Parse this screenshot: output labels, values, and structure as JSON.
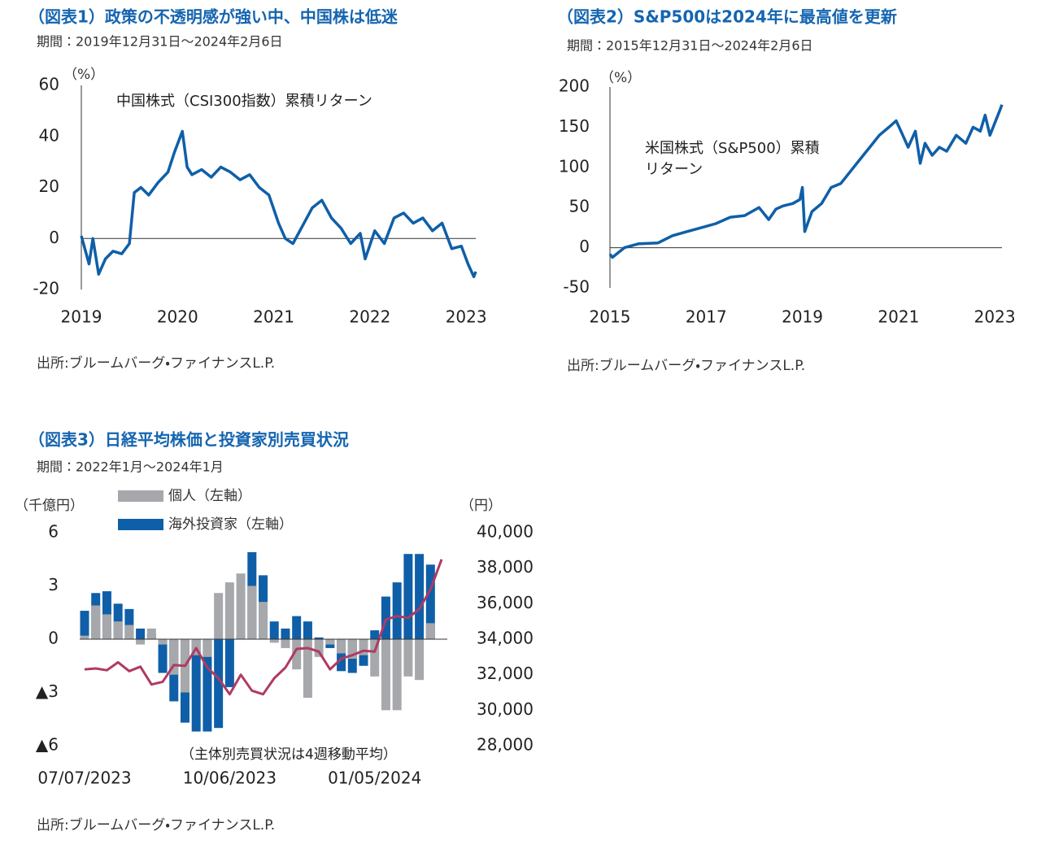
{
  "chart_data": [
    {
      "type": "line",
      "title": "（図表1）政策の不透明感が強い中、中国株は低迷",
      "subtitle": "期間：2019年12月31日～2024年2月6日",
      "y_unit": "（%）",
      "annotation": "中国株式（CSI300指数）累積リターン",
      "source": "出所:ブルームバーグ・ファイナンスL.P.",
      "xlim": [
        2019,
        2023.1
      ],
      "xticks": [
        2019,
        2020,
        2021,
        2022,
        2023
      ],
      "ylim": [
        -20,
        60
      ],
      "yticks": [
        -20,
        0,
        20,
        40,
        60
      ],
      "color": "#0f5fa8",
      "x": [
        2019.0,
        2019.08,
        2019.12,
        2019.18,
        2019.25,
        2019.33,
        2019.42,
        2019.5,
        2019.55,
        2019.62,
        2019.7,
        2019.8,
        2019.9,
        2019.97,
        2020.05,
        2020.1,
        2020.15,
        2020.25,
        2020.35,
        2020.45,
        2020.55,
        2020.65,
        2020.75,
        2020.85,
        2020.95,
        2021.05,
        2021.12,
        2021.2,
        2021.3,
        2021.4,
        2021.5,
        2021.6,
        2021.7,
        2021.8,
        2021.9,
        2021.95,
        2022.05,
        2022.15,
        2022.25,
        2022.35,
        2022.45,
        2022.55,
        2022.65,
        2022.75,
        2022.85,
        2022.95,
        2023.02,
        2023.08,
        2023.1
      ],
      "values": [
        1,
        -10,
        0,
        -14,
        -8,
        -5,
        -6,
        -2,
        18,
        20,
        17,
        22,
        26,
        34,
        42,
        28,
        25,
        27,
        24,
        28,
        26,
        23,
        25,
        20,
        17,
        6,
        0,
        -2,
        5,
        12,
        15,
        8,
        4,
        -2,
        2,
        -8,
        3,
        -2,
        8,
        10,
        6,
        8,
        3,
        6,
        -4,
        -3,
        -10,
        -15,
        -13
      ]
    },
    {
      "type": "line",
      "title": "（図表2）S&P500は2024年に最高値を更新",
      "subtitle": "期間：2015年12月31日～2024年2月6日",
      "y_unit": "（%）",
      "annotation": "米国株式（S&P500）累積リターン",
      "source": "出所:ブルームバーグ・ファイナンスL.P.",
      "xlim": [
        2015,
        2023.15
      ],
      "xticks": [
        2015,
        2017,
        2019,
        2021,
        2023
      ],
      "ylim": [
        -50,
        200
      ],
      "yticks": [
        -50,
        0,
        50,
        100,
        150,
        200
      ],
      "color": "#0f5fa8",
      "x": [
        2015,
        2015.05,
        2015.3,
        2015.6,
        2016,
        2016.3,
        2016.6,
        2016.9,
        2017.2,
        2017.5,
        2017.8,
        2017.95,
        2018.1,
        2018.3,
        2018.45,
        2018.6,
        2018.8,
        2018.95,
        2019.0,
        2019.05,
        2019.2,
        2019.4,
        2019.6,
        2019.8,
        2020.0,
        2020.2,
        2020.4,
        2020.6,
        2020.8,
        2020.95,
        2021.05,
        2021.2,
        2021.35,
        2021.45,
        2021.55,
        2021.7,
        2021.85,
        2022.0,
        2022.2,
        2022.4,
        2022.55,
        2022.7,
        2022.8,
        2022.9,
        2023.0,
        2023.1,
        2023.15
      ],
      "values": [
        -8,
        -12,
        0,
        5,
        6,
        15,
        20,
        25,
        30,
        38,
        40,
        45,
        50,
        35,
        48,
        52,
        55,
        60,
        75,
        20,
        45,
        55,
        75,
        80,
        95,
        110,
        125,
        140,
        150,
        158,
        145,
        125,
        145,
        105,
        130,
        115,
        125,
        120,
        140,
        130,
        150,
        145,
        165,
        140,
        155,
        170,
        178
      ]
    },
    {
      "type": "bar",
      "title": "（図表3）日経平均株価と投資家別売買状況",
      "subtitle": "期間：2022年1月～2024年1月",
      "y_unit": "（千億円）",
      "y2_unit": "（円）",
      "note": "（主体別売買状況は4週移動平均）",
      "source": "出所:ブルームバーグ・ファイナンスL.P.",
      "categories": [
        "07/07/2023",
        null,
        null,
        null,
        null,
        null,
        null,
        null,
        null,
        null,
        null,
        null,
        null,
        "10/06/2023",
        null,
        null,
        null,
        null,
        null,
        null,
        null,
        null,
        null,
        null,
        null,
        null,
        "01/05/2024",
        null,
        null,
        null,
        null,
        null,
        null
      ],
      "ylim": [
        -6,
        6
      ],
      "yticks": [
        {
          "value": -6,
          "label": "▲6"
        },
        {
          "value": -3,
          "label": "▲3"
        },
        0,
        3,
        6
      ],
      "y2lim": [
        28000,
        40000
      ],
      "y2ticks": [
        {
          "value": 28000,
          "label": "28,000"
        },
        {
          "value": 30000,
          "label": "30,000"
        },
        {
          "value": 32000,
          "label": "32,000"
        },
        {
          "value": 34000,
          "label": "34,000"
        },
        {
          "value": 36000,
          "label": "36,000"
        },
        {
          "value": 38000,
          "label": "38,000"
        },
        {
          "value": 40000,
          "label": "40,000"
        }
      ],
      "series": [
        {
          "name": "海外投資家（左軸）",
          "color": "#0f5fa8",
          "values": [
            1.6,
            2.6,
            2.7,
            2.0,
            1.7,
            0.6,
            0.3,
            -1.9,
            -3.5,
            -4.7,
            -5.2,
            -5.2,
            -5.0,
            -2.7,
            0.2,
            4.9,
            3.6,
            1.0,
            0.6,
            1.3,
            1.0,
            0.1,
            -0.5,
            -1.8,
            -1.9,
            -1.5,
            0.5,
            2.4,
            3.2,
            4.8,
            4.8,
            4.2,
            null
          ]
        },
        {
          "name": "個人（左軸）",
          "color": "#a6a8ab",
          "values": [
            0.2,
            1.9,
            1.4,
            1.0,
            0.8,
            -0.3,
            0.6,
            -0.3,
            -2.0,
            -3.0,
            -0.9,
            -1.0,
            2.6,
            3.2,
            3.7,
            3.0,
            2.1,
            -0.2,
            -0.5,
            -1.7,
            -3.3,
            -1.0,
            -0.3,
            -0.8,
            -1.1,
            -0.9,
            -2.1,
            -4.0,
            -4.0,
            -2.1,
            -2.3,
            0.9,
            null
          ]
        },
        {
          "type": "line",
          "axis": "y2",
          "color": "#b03a63",
          "values": [
            32300,
            32350,
            32250,
            32700,
            32200,
            32450,
            31450,
            31600,
            32550,
            32500,
            33500,
            32400,
            31800,
            30900,
            32000,
            31100,
            30900,
            31800,
            32400,
            33450,
            33500,
            33300,
            32300,
            32900,
            33100,
            33350,
            33300,
            35100,
            35300,
            35200,
            35700,
            36800,
            38500
          ]
        }
      ]
    }
  ]
}
